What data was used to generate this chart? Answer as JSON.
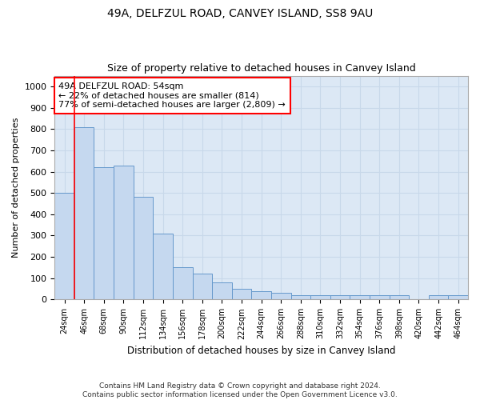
{
  "title1": "49A, DELFZUL ROAD, CANVEY ISLAND, SS8 9AU",
  "title2": "Size of property relative to detached houses in Canvey Island",
  "xlabel": "Distribution of detached houses by size in Canvey Island",
  "ylabel": "Number of detached properties",
  "footnote": "Contains HM Land Registry data © Crown copyright and database right 2024.\nContains public sector information licensed under the Open Government Licence v3.0.",
  "categories": [
    "24sqm",
    "46sqm",
    "68sqm",
    "90sqm",
    "112sqm",
    "134sqm",
    "156sqm",
    "178sqm",
    "200sqm",
    "222sqm",
    "244sqm",
    "266sqm",
    "288sqm",
    "310sqm",
    "332sqm",
    "354sqm",
    "376sqm",
    "398sqm",
    "420sqm",
    "442sqm",
    "464sqm"
  ],
  "values": [
    500,
    810,
    620,
    630,
    480,
    310,
    150,
    120,
    80,
    50,
    40,
    30,
    20,
    20,
    20,
    20,
    20,
    20,
    0,
    20,
    20
  ],
  "bar_color": "#c5d8ef",
  "bar_edge_color": "#6699cc",
  "property_line_x": 1.0,
  "annotation_text": "49A DELFZUL ROAD: 54sqm\n← 22% of detached houses are smaller (814)\n77% of semi-detached houses are larger (2,809) →",
  "annotation_box_color": "white",
  "annotation_box_edge_color": "red",
  "ylim": [
    0,
    1050
  ],
  "yticks": [
    0,
    100,
    200,
    300,
    400,
    500,
    600,
    700,
    800,
    900,
    1000
  ],
  "grid_color": "#c8d8ea",
  "background_color": "#dce8f5",
  "title1_fontsize": 10,
  "title2_fontsize": 9,
  "xlabel_fontsize": 8.5,
  "ylabel_fontsize": 8
}
